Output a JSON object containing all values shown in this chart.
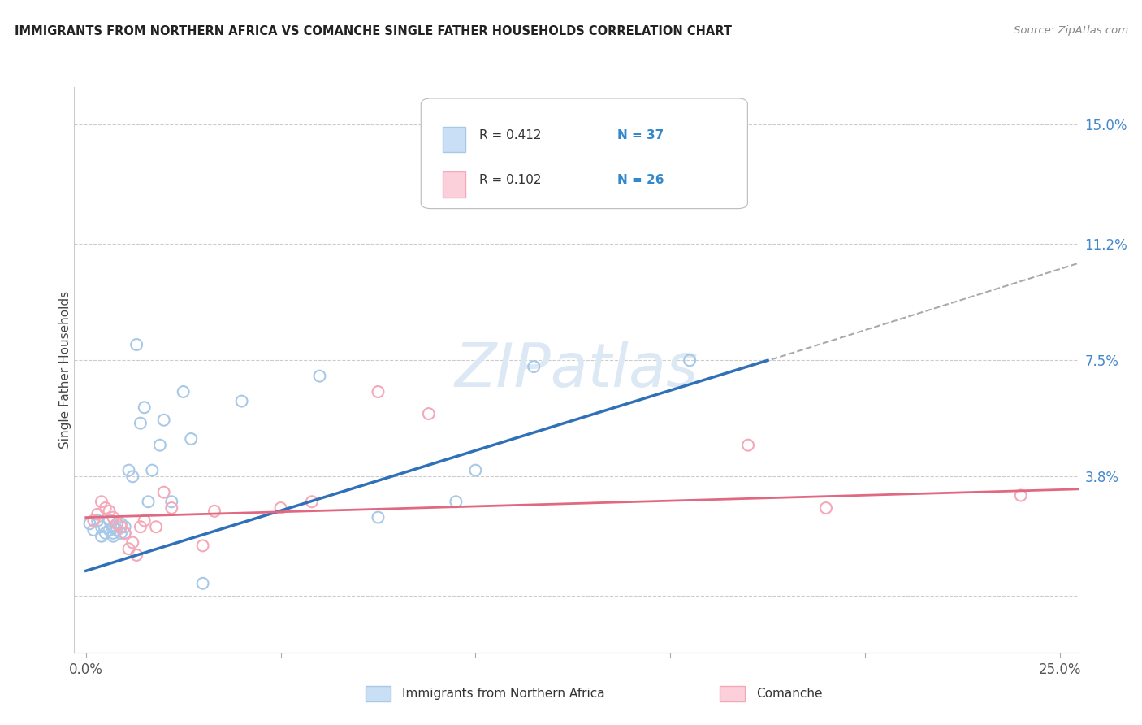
{
  "title": "IMMIGRANTS FROM NORTHERN AFRICA VS COMANCHE SINGLE FATHER HOUSEHOLDS CORRELATION CHART",
  "source": "Source: ZipAtlas.com",
  "ylabel": "Single Father Households",
  "xlim": [
    -0.003,
    0.255
  ],
  "ylim": [
    -0.018,
    0.162
  ],
  "yticks": [
    0.0,
    0.038,
    0.075,
    0.112,
    0.15
  ],
  "ytick_labels": [
    "",
    "3.8%",
    "7.5%",
    "11.2%",
    "15.0%"
  ],
  "xticks": [
    0.0,
    0.05,
    0.1,
    0.15,
    0.2,
    0.25
  ],
  "xtick_labels": [
    "0.0%",
    "",
    "",
    "",
    "",
    "25.0%"
  ],
  "legend_r1": "R = 0.412",
  "legend_n1": "N = 37",
  "legend_r2": "R = 0.102",
  "legend_n2": "N = 26",
  "blue_scatter_color": "#a8c8e8",
  "pink_scatter_color": "#f4a8b8",
  "blue_line_color": "#3070b8",
  "pink_line_color": "#e06880",
  "dashed_line_color": "#aaaaaa",
  "blue_fill_color": "#c8dff5",
  "pink_fill_color": "#fcd0da",
  "watermark_color": "#dce9f5",
  "blue_line_x0": 0.0,
  "blue_line_y0": 0.008,
  "blue_line_x1": 0.175,
  "blue_line_y1": 0.075,
  "dash_line_x0": 0.165,
  "dash_line_y0": 0.071,
  "dash_line_x1": 0.255,
  "dash_line_y1": 0.106,
  "pink_line_x0": 0.0,
  "pink_line_y0": 0.025,
  "pink_line_x1": 0.255,
  "pink_line_y1": 0.034,
  "blue_x": [
    0.001,
    0.002,
    0.003,
    0.004,
    0.004,
    0.005,
    0.006,
    0.006,
    0.007,
    0.007,
    0.007,
    0.008,
    0.008,
    0.009,
    0.009,
    0.01,
    0.01,
    0.011,
    0.012,
    0.013,
    0.014,
    0.015,
    0.016,
    0.017,
    0.019,
    0.02,
    0.022,
    0.025,
    0.027,
    0.03,
    0.04,
    0.06,
    0.075,
    0.095,
    0.1,
    0.115,
    0.155
  ],
  "blue_y": [
    0.023,
    0.021,
    0.024,
    0.019,
    0.022,
    0.02,
    0.021,
    0.024,
    0.019,
    0.022,
    0.02,
    0.021,
    0.023,
    0.02,
    0.023,
    0.02,
    0.022,
    0.04,
    0.038,
    0.08,
    0.055,
    0.06,
    0.03,
    0.04,
    0.048,
    0.056,
    0.03,
    0.065,
    0.05,
    0.004,
    0.062,
    0.07,
    0.025,
    0.03,
    0.04,
    0.073,
    0.075
  ],
  "pink_x": [
    0.002,
    0.003,
    0.004,
    0.005,
    0.006,
    0.007,
    0.008,
    0.009,
    0.01,
    0.011,
    0.012,
    0.013,
    0.014,
    0.015,
    0.018,
    0.02,
    0.022,
    0.03,
    0.033,
    0.05,
    0.058,
    0.075,
    0.088,
    0.17,
    0.19,
    0.24
  ],
  "pink_y": [
    0.024,
    0.026,
    0.03,
    0.028,
    0.027,
    0.025,
    0.023,
    0.022,
    0.02,
    0.015,
    0.017,
    0.013,
    0.022,
    0.024,
    0.022,
    0.033,
    0.028,
    0.016,
    0.027,
    0.028,
    0.03,
    0.065,
    0.058,
    0.048,
    0.028,
    0.032
  ]
}
